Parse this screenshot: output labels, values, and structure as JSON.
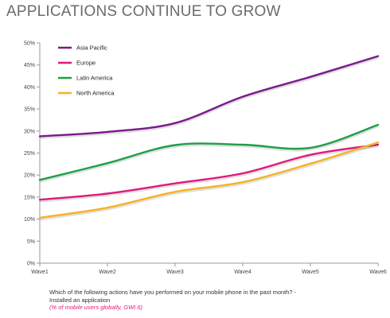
{
  "title": "APPLICATIONS CONTINUE TO GROW",
  "footnote": {
    "question": "Which of the following actions have you performed on your mobile phone in the past month? -",
    "answer": "Installed an application",
    "source": "(% of mobile users globally, GWI.6)"
  },
  "chart_data": {
    "type": "line",
    "x": [
      "Wave1",
      "Wave2",
      "Wave3",
      "Wave4",
      "Wave5",
      "Wave6"
    ],
    "ylim": [
      0,
      50
    ],
    "yticks": [
      "0%",
      "5%",
      "10%",
      "15%",
      "20%",
      "25%",
      "30%",
      "35%",
      "40%",
      "45%",
      "50%"
    ],
    "grid": false,
    "legend": "top-left",
    "series": [
      {
        "name": "Asia Pacific",
        "color": "#7b1a8c",
        "values": [
          28.8,
          29.8,
          31.8,
          37.8,
          42.3,
          47.0
        ]
      },
      {
        "name": "Europe",
        "color": "#e0197d",
        "values": [
          14.4,
          15.8,
          18.1,
          20.4,
          24.6,
          26.9
        ]
      },
      {
        "name": "Latin America",
        "color": "#1e9e4a",
        "values": [
          18.9,
          22.7,
          26.8,
          26.9,
          26.2,
          31.4
        ]
      },
      {
        "name": "North America",
        "color": "#f5b323",
        "values": [
          10.3,
          12.6,
          16.2,
          18.4,
          22.6,
          27.4
        ]
      }
    ]
  }
}
